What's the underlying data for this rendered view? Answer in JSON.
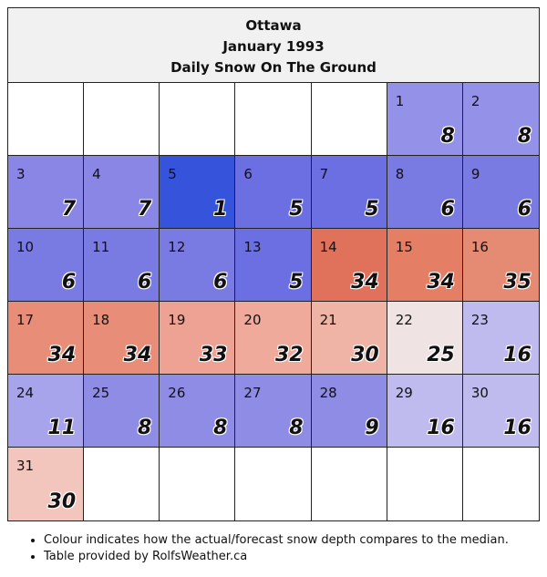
{
  "header": {
    "city": "Ottawa",
    "month": "January 1993",
    "metric": "Daily Snow On The Ground"
  },
  "calendar": {
    "leading_blank_days": 5,
    "total_cells": 42,
    "days": [
      {
        "day": "1",
        "value": "8",
        "color": "#9491e8"
      },
      {
        "day": "2",
        "value": "8",
        "color": "#9491e8"
      },
      {
        "day": "3",
        "value": "7",
        "color": "#8a86e6"
      },
      {
        "day": "4",
        "value": "7",
        "color": "#8a86e6"
      },
      {
        "day": "5",
        "value": "1",
        "color": "#3553db"
      },
      {
        "day": "6",
        "value": "5",
        "color": "#6b6fe1"
      },
      {
        "day": "7",
        "value": "5",
        "color": "#6b6fe1"
      },
      {
        "day": "8",
        "value": "6",
        "color": "#7a7ae3"
      },
      {
        "day": "9",
        "value": "6",
        "color": "#7a7ae3"
      },
      {
        "day": "10",
        "value": "6",
        "color": "#7a7ae3"
      },
      {
        "day": "11",
        "value": "6",
        "color": "#7a7ae3"
      },
      {
        "day": "12",
        "value": "6",
        "color": "#7a7ae3"
      },
      {
        "day": "13",
        "value": "5",
        "color": "#6b6fe1"
      },
      {
        "day": "14",
        "value": "34",
        "color": "#e0715a"
      },
      {
        "day": "15",
        "value": "34",
        "color": "#e47f66"
      },
      {
        "day": "16",
        "value": "35",
        "color": "#e58a73"
      },
      {
        "day": "17",
        "value": "34",
        "color": "#e88e78"
      },
      {
        "day": "18",
        "value": "34",
        "color": "#e88e78"
      },
      {
        "day": "19",
        "value": "33",
        "color": "#eda293"
      },
      {
        "day": "20",
        "value": "32",
        "color": "#efaa9c"
      },
      {
        "day": "21",
        "value": "30",
        "color": "#f0b4a7"
      },
      {
        "day": "22",
        "value": "25",
        "color": "#efe4e3"
      },
      {
        "day": "23",
        "value": "16",
        "color": "#bfbbef"
      },
      {
        "day": "24",
        "value": "11",
        "color": "#a8a4ec"
      },
      {
        "day": "25",
        "value": "8",
        "color": "#8f8ce6"
      },
      {
        "day": "26",
        "value": "8",
        "color": "#8f8ce6"
      },
      {
        "day": "27",
        "value": "8",
        "color": "#8f8ce6"
      },
      {
        "day": "28",
        "value": "9",
        "color": "#8f8ce6"
      },
      {
        "day": "29",
        "value": "16",
        "color": "#bfbbef"
      },
      {
        "day": "30",
        "value": "16",
        "color": "#bfbbef"
      },
      {
        "day": "31",
        "value": "30",
        "color": "#f2c6bd"
      }
    ]
  },
  "notes": [
    "Colour indicates how the actual/forecast snow depth compares to the median.",
    "Table provided by RolfsWeather.ca"
  ]
}
